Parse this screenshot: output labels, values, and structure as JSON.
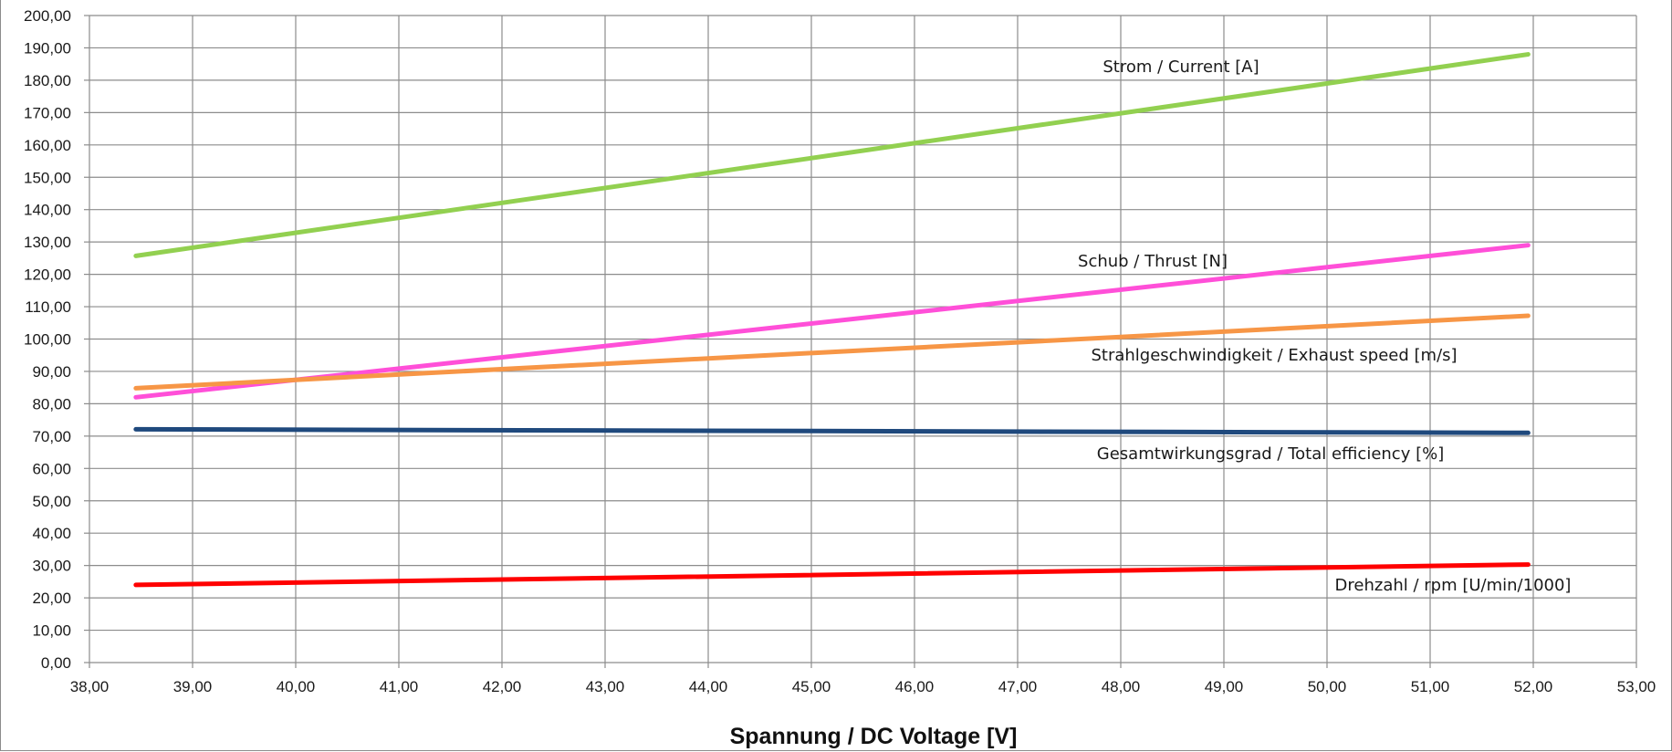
{
  "chart_data": {
    "type": "line",
    "title": "",
    "xlabel": "Spannung / DC Voltage [V]",
    "ylabel": "",
    "xlim": [
      38,
      53
    ],
    "ylim": [
      0,
      200
    ],
    "x_ticks": [
      "38,00",
      "39,00",
      "40,00",
      "41,00",
      "42,00",
      "43,00",
      "44,00",
      "45,00",
      "46,00",
      "47,00",
      "48,00",
      "49,00",
      "50,00",
      "51,00",
      "52,00",
      "53,00"
    ],
    "y_ticks": [
      "0,00",
      "10,00",
      "20,00",
      "30,00",
      "40,00",
      "50,00",
      "60,00",
      "70,00",
      "80,00",
      "90,00",
      "100,00",
      "110,00",
      "120,00",
      "130,00",
      "140,00",
      "150,00",
      "160,00",
      "170,00",
      "180,00",
      "190,00",
      "200,00"
    ],
    "grid": true,
    "legend": "none",
    "series": [
      {
        "name": "Strom / Current [A]",
        "color": "#92d050",
        "x": [
          38.45,
          51.95
        ],
        "y": [
          125.7,
          188.0
        ]
      },
      {
        "name": "Schub / Thrust [N]",
        "color": "#ff4fd8",
        "x": [
          38.45,
          51.95
        ],
        "y": [
          82.0,
          129.0
        ]
      },
      {
        "name": "Strahlgeschwindigkeit / Exhaust speed [m/s]",
        "color": "#f79646",
        "x": [
          38.45,
          51.95
        ],
        "y": [
          84.8,
          107.2
        ]
      },
      {
        "name": "Gesamtwirkungsgrad / Total efficiency [%]",
        "color": "#1f497d",
        "x": [
          38.45,
          51.95
        ],
        "y": [
          72.1,
          71.0
        ]
      },
      {
        "name": "Drehzahl / rpm [U/min/1000]",
        "color": "#ff0000",
        "x": [
          38.45,
          51.95
        ],
        "y": [
          24.0,
          30.3
        ]
      }
    ]
  }
}
